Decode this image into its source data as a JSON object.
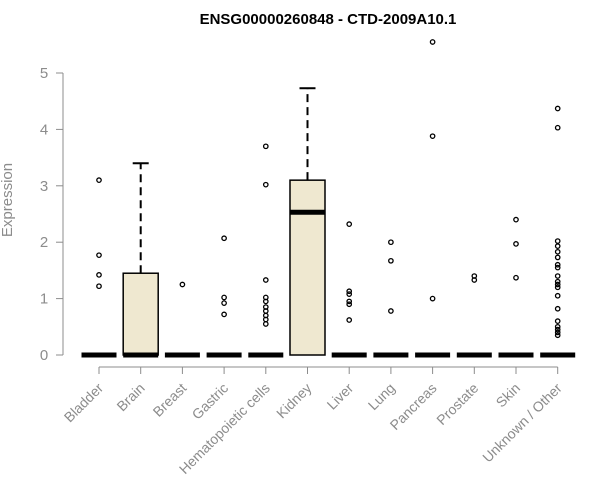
{
  "chart_data": {
    "type": "box",
    "title": "ENSG00000260848 - CTD-2009A10.1",
    "xlabel": "",
    "ylabel": "Expression",
    "ylim": [
      0,
      5.5
    ],
    "yticks": [
      0,
      1,
      2,
      3,
      4,
      5
    ],
    "grid": false,
    "colors": {
      "box_fill": "#efe8d0",
      "box_stroke": "#000000",
      "axis": "#8c8c8c"
    },
    "categories": [
      "Bladder",
      "Brain",
      "Breast",
      "Gastric",
      "Hematopoietic cells",
      "Kidney",
      "Liver",
      "Lung",
      "Pancreas",
      "Prostate",
      "Skin",
      "Unknown / Other"
    ],
    "boxes": [
      {
        "category": "Bladder",
        "q1": 0,
        "median": 0,
        "q3": 0,
        "whisker_low": 0,
        "whisker_high": 0,
        "outliers": [
          3.1,
          1.77,
          1.42,
          1.22
        ]
      },
      {
        "category": "Brain",
        "q1": 0,
        "median": 0,
        "q3": 1.45,
        "whisker_low": 0,
        "whisker_high": 3.4,
        "outliers": []
      },
      {
        "category": "Breast",
        "q1": 0,
        "median": 0,
        "q3": 0,
        "whisker_low": 0,
        "whisker_high": 0,
        "outliers": [
          1.25
        ]
      },
      {
        "category": "Gastric",
        "q1": 0,
        "median": 0,
        "q3": 0,
        "whisker_low": 0,
        "whisker_high": 0,
        "outliers": [
          2.07,
          1.02,
          0.92,
          0.72
        ]
      },
      {
        "category": "Hematopoietic cells",
        "q1": 0,
        "median": 0,
        "q3": 0,
        "whisker_low": 0,
        "whisker_high": 0,
        "outliers": [
          3.7,
          3.02,
          1.33,
          1.02,
          0.95,
          0.85,
          0.78,
          0.7,
          0.63,
          0.55
        ]
      },
      {
        "category": "Kidney",
        "q1": 0,
        "median": 2.53,
        "q3": 3.1,
        "whisker_low": 0,
        "whisker_high": 4.73,
        "outliers": []
      },
      {
        "category": "Liver",
        "q1": 0,
        "median": 0,
        "q3": 0,
        "whisker_low": 0,
        "whisker_high": 0,
        "outliers": [
          2.32,
          1.13,
          1.08,
          0.95,
          0.9,
          0.62
        ]
      },
      {
        "category": "Lung",
        "q1": 0,
        "median": 0,
        "q3": 0,
        "whisker_low": 0,
        "whisker_high": 0,
        "outliers": [
          2.0,
          1.67,
          0.78
        ]
      },
      {
        "category": "Pancreas",
        "q1": 0,
        "median": 0,
        "q3": 0,
        "whisker_low": 0,
        "whisker_high": 0,
        "outliers": [
          5.55,
          3.88,
          1.0
        ]
      },
      {
        "category": "Prostate",
        "q1": 0,
        "median": 0,
        "q3": 0,
        "whisker_low": 0,
        "whisker_high": 0,
        "outliers": [
          1.4,
          1.33
        ]
      },
      {
        "category": "Skin",
        "q1": 0,
        "median": 0,
        "q3": 0,
        "whisker_low": 0,
        "whisker_high": 0,
        "outliers": [
          2.4,
          1.97,
          1.37
        ]
      },
      {
        "category": "Unknown / Other",
        "q1": 0,
        "median": 0,
        "q3": 0,
        "whisker_low": 0,
        "whisker_high": 0,
        "outliers": [
          4.37,
          4.03,
          2.02,
          1.93,
          1.83,
          1.73,
          1.6,
          1.55,
          1.4,
          1.3,
          1.25,
          1.2,
          1.05,
          0.82,
          0.6,
          0.5,
          0.45,
          0.4,
          0.35
        ]
      }
    ]
  }
}
